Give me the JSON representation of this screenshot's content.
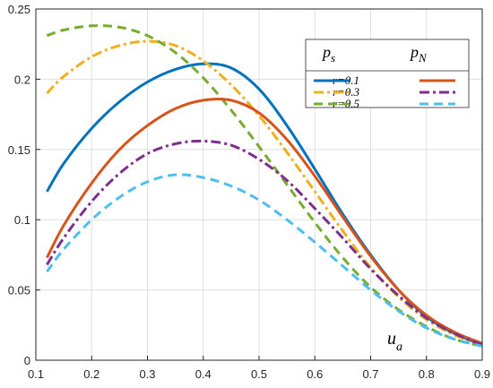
{
  "chart_data": {
    "type": "line",
    "xlabel": "u",
    "xlabel_sub": "a",
    "ylabel": "",
    "xlim": [
      0.1,
      0.9
    ],
    "ylim": [
      0,
      0.25
    ],
    "xticks": [
      "0.1",
      "0.2",
      "0.3",
      "0.4",
      "0.5",
      "0.6",
      "0.7",
      "0.8",
      "0.9"
    ],
    "yticks": [
      "0",
      "0.05",
      "0.1",
      "0.15",
      "0.2",
      "0.25"
    ],
    "grid": true,
    "legend": {
      "placement": "top-right",
      "header_left": "p",
      "header_left_sub": "s",
      "header_right": "p",
      "header_right_sub": "N",
      "rows": [
        "r=0.1",
        "r=0.3",
        "r=0.5"
      ]
    },
    "series": [
      {
        "name": "r=0.1",
        "group": "ps",
        "color": "#0072BD",
        "style": "solid",
        "x": [
          0.12,
          0.15,
          0.2,
          0.25,
          0.3,
          0.35,
          0.4,
          0.45,
          0.5,
          0.55,
          0.6,
          0.65,
          0.7,
          0.75,
          0.8,
          0.85,
          0.9
        ],
        "y": [
          0.12,
          0.14,
          0.165,
          0.184,
          0.198,
          0.207,
          0.211,
          0.208,
          0.193,
          0.167,
          0.136,
          0.104,
          0.075,
          0.05,
          0.031,
          0.019,
          0.011
        ]
      },
      {
        "name": "r=0.3",
        "group": "ps",
        "color": "#EDB120",
        "style": "dashdot",
        "x": [
          0.12,
          0.15,
          0.2,
          0.25,
          0.3,
          0.35,
          0.4,
          0.45,
          0.5,
          0.55,
          0.6,
          0.65,
          0.7,
          0.75,
          0.8,
          0.85,
          0.9
        ],
        "y": [
          0.19,
          0.202,
          0.216,
          0.224,
          0.227,
          0.224,
          0.213,
          0.196,
          0.174,
          0.148,
          0.12,
          0.092,
          0.066,
          0.045,
          0.029,
          0.018,
          0.011
        ]
      },
      {
        "name": "r=0.5",
        "group": "ps",
        "color": "#77AC30",
        "style": "dashed",
        "x": [
          0.12,
          0.15,
          0.2,
          0.25,
          0.3,
          0.35,
          0.4,
          0.45,
          0.5,
          0.55,
          0.6,
          0.65,
          0.7,
          0.75,
          0.8,
          0.85,
          0.9
        ],
        "y": [
          0.231,
          0.235,
          0.238,
          0.237,
          0.231,
          0.219,
          0.201,
          0.178,
          0.152,
          0.125,
          0.098,
          0.073,
          0.052,
          0.036,
          0.024,
          0.015,
          0.01
        ]
      },
      {
        "name": "r=0.1",
        "group": "pN",
        "color": "#D95319",
        "style": "solid",
        "x": [
          0.12,
          0.15,
          0.2,
          0.25,
          0.3,
          0.35,
          0.4,
          0.45,
          0.5,
          0.55,
          0.6,
          0.65,
          0.7,
          0.75,
          0.8,
          0.85,
          0.9
        ],
        "y": [
          0.073,
          0.096,
          0.126,
          0.15,
          0.167,
          0.179,
          0.185,
          0.185,
          0.176,
          0.157,
          0.131,
          0.102,
          0.074,
          0.05,
          0.032,
          0.02,
          0.012
        ]
      },
      {
        "name": "r=0.3",
        "group": "pN",
        "color": "#7E2F8E",
        "style": "dashdot",
        "x": [
          0.12,
          0.15,
          0.2,
          0.25,
          0.3,
          0.35,
          0.4,
          0.45,
          0.5,
          0.55,
          0.6,
          0.65,
          0.7,
          0.75,
          0.8,
          0.85,
          0.9
        ],
        "y": [
          0.068,
          0.087,
          0.113,
          0.133,
          0.147,
          0.154,
          0.156,
          0.153,
          0.143,
          0.128,
          0.108,
          0.087,
          0.065,
          0.046,
          0.03,
          0.019,
          0.011
        ]
      },
      {
        "name": "r=0.5",
        "group": "pN",
        "color": "#4DBEEE",
        "style": "dashed",
        "x": [
          0.12,
          0.15,
          0.2,
          0.25,
          0.3,
          0.35,
          0.4,
          0.45,
          0.5,
          0.55,
          0.6,
          0.65,
          0.7,
          0.75,
          0.8,
          0.85,
          0.9
        ],
        "y": [
          0.063,
          0.079,
          0.1,
          0.116,
          0.127,
          0.132,
          0.13,
          0.124,
          0.114,
          0.1,
          0.084,
          0.067,
          0.05,
          0.035,
          0.023,
          0.015,
          0.01
        ]
      }
    ]
  }
}
